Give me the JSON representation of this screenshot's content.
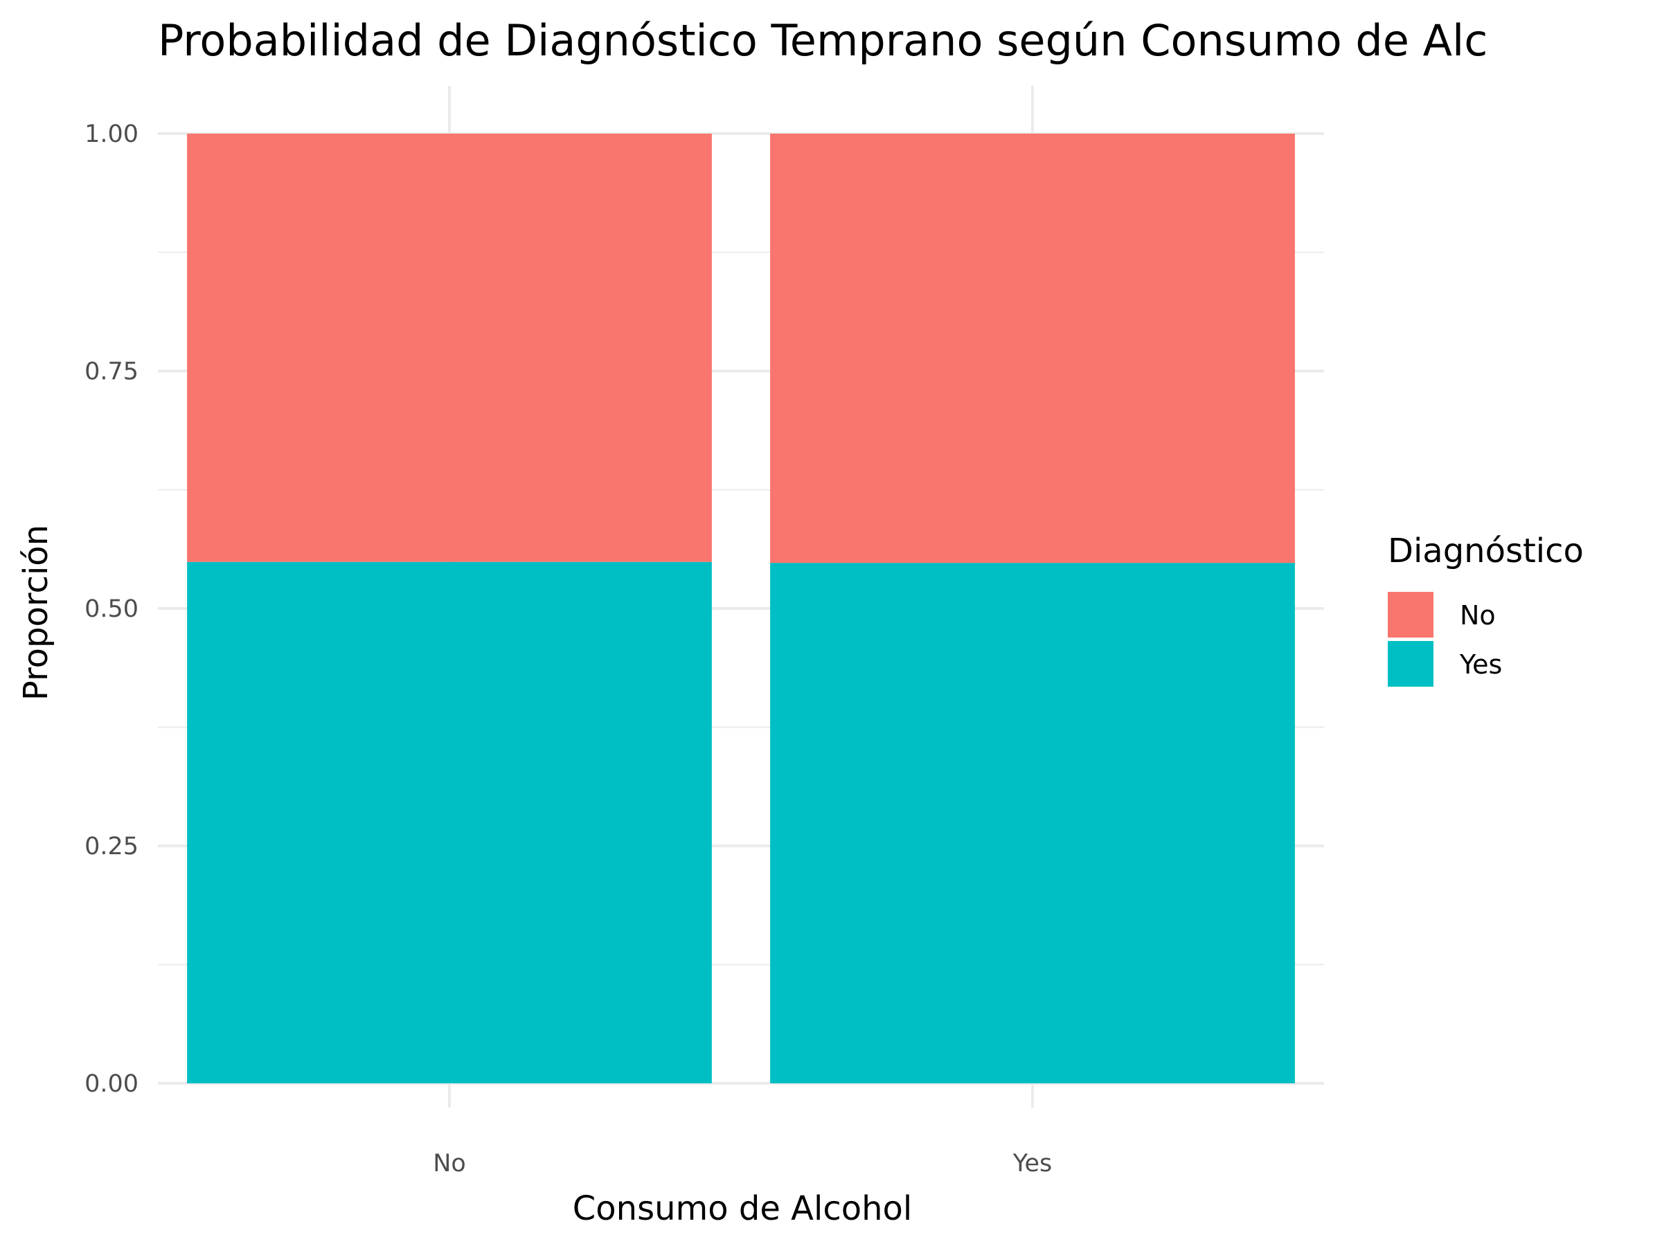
{
  "chart_data": {
    "type": "bar",
    "stacked": true,
    "title": "Probabilidad de Diagnóstico Temprano según Consumo de Alc",
    "xlabel": "Consumo de Alcohol",
    "ylabel": "Proporción",
    "categories": [
      "No",
      "Yes"
    ],
    "ylim": [
      0,
      1
    ],
    "yticks": [
      "0.00",
      "0.25",
      "0.50",
      "0.75",
      "1.00"
    ],
    "grid": true,
    "legend": {
      "title": "Diagnóstico",
      "position": "right"
    },
    "series": [
      {
        "name": "Yes",
        "color": "#00BFC4",
        "values": [
          0.549,
          0.548
        ]
      },
      {
        "name": "No",
        "color": "#F8766D",
        "values": [
          0.451,
          0.452
        ]
      }
    ],
    "legend_items": [
      {
        "label": "No",
        "color": "#F8766D"
      },
      {
        "label": "Yes",
        "color": "#00BFC4"
      }
    ]
  }
}
